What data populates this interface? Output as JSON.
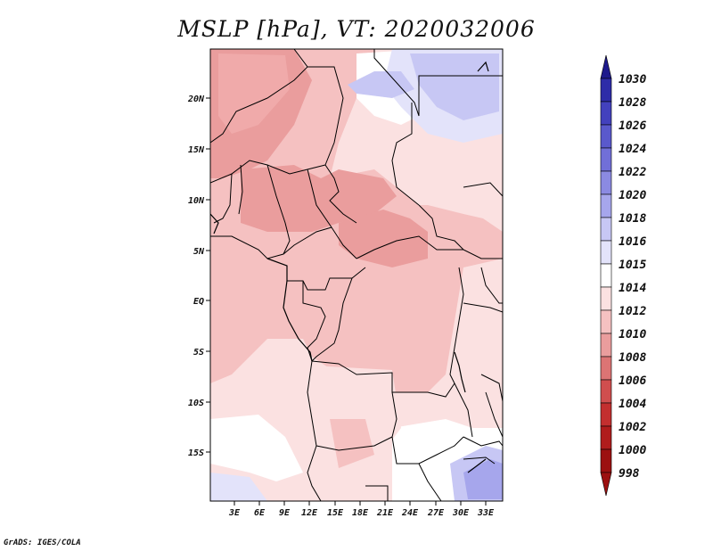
{
  "title": "MSLP [hPa], VT: 2020032006",
  "credit": "GrADS: IGES/COLA",
  "lat_ticks": [
    "20N",
    "15N",
    "10N",
    "5N",
    "EQ",
    "5S",
    "10S",
    "15S"
  ],
  "lon_ticks": [
    "3E",
    "6E",
    "9E",
    "12E",
    "15E",
    "18E",
    "21E",
    "24E",
    "27E",
    "30E",
    "33E"
  ],
  "colorbar": {
    "levels": [
      "1030",
      "1028",
      "1026",
      "1024",
      "1022",
      "1020",
      "1018",
      "1016",
      "1015",
      "1014",
      "1012",
      "1010",
      "1008",
      "1006",
      "1004",
      "1002",
      "1000",
      "998"
    ],
    "colors": [
      "#1e1a8c",
      "#2e2ca8",
      "#4341bd",
      "#5a59cc",
      "#716fd8",
      "#8b8ae2",
      "#a6a6ec",
      "#c7c7f4",
      "#e3e3fa",
      "#ffffff",
      "#fbe1e1",
      "#f5c1c1",
      "#ea9d9d",
      "#dc7474",
      "#d04e4e",
      "#c32f2f",
      "#b01c1c",
      "#9c1010"
    ]
  },
  "map": {
    "variable": "MSLP",
    "units": "hPa",
    "valid_time": "2020032006"
  }
}
